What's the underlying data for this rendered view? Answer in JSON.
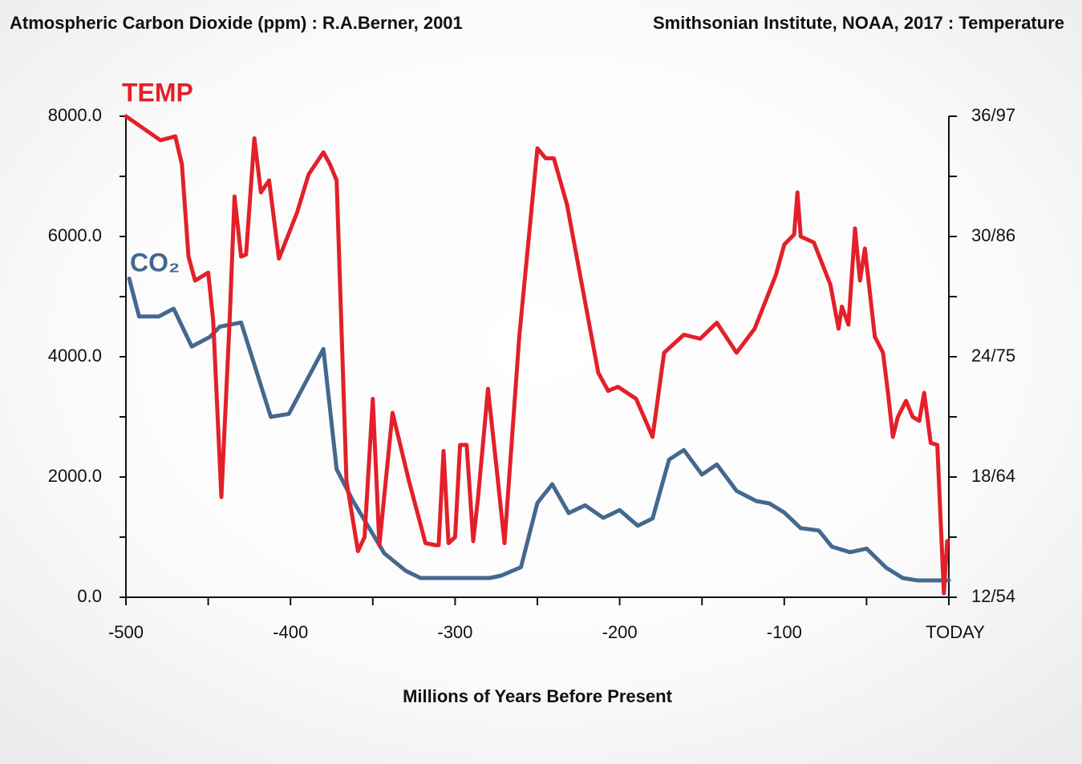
{
  "chart_data": {
    "type": "line",
    "title_left": "Atmospheric Carbon Dioxide (ppm) : R.A.Berner, 2001",
    "title_right": "Smithsonian Institute, NOAA, 2017 : Temperature",
    "x_label": "Millions of Years Before Present",
    "xlim": [
      -500,
      0
    ],
    "xticks": [
      -500,
      -400,
      -300,
      -200,
      -100,
      {
        "value": 0,
        "label": "TODAY"
      }
    ],
    "xminorticks": [
      -450,
      -350,
      -250,
      -150,
      -50
    ],
    "ylim": [
      0,
      8000
    ],
    "yticks": [
      {
        "value": 0,
        "label": "0.0"
      },
      {
        "value": 2000,
        "label": "2000.0"
      },
      {
        "value": 4000,
        "label": "4000.0"
      },
      {
        "value": 6000,
        "label": "6000.0"
      },
      {
        "value": 8000,
        "label": "8000.0"
      }
    ],
    "yminorticks": [
      1000,
      3000,
      5000,
      7000
    ],
    "y2lim": [
      12,
      36
    ],
    "y2ticks": [
      {
        "value": 12,
        "label": "12/54"
      },
      {
        "value": 18,
        "label": "18/64"
      },
      {
        "value": 24,
        "label": "24/75"
      },
      {
        "value": 30,
        "label": "30/86"
      },
      {
        "value": 36,
        "label": "36/97"
      }
    ],
    "y2minorticks": [
      15,
      21,
      27,
      33
    ],
    "series": [
      {
        "name": "TEMP",
        "color": "#e3202a",
        "axis": "y2",
        "x": [
          -500,
          -479,
          -470,
          -466,
          -462,
          -458,
          -450,
          -447,
          -442,
          -437,
          -434,
          -430,
          -427,
          -422,
          -418,
          -413,
          -407,
          -396,
          -389,
          -380,
          -376,
          -372,
          -366,
          -359,
          -355,
          -350,
          -346,
          -338,
          -328,
          -318,
          -312,
          -310,
          -307,
          -304,
          -300,
          -297,
          -293,
          -289,
          -286,
          -280,
          -275,
          -270,
          -261,
          -250,
          -245,
          -240,
          -232,
          -213,
          -207,
          -201,
          -190,
          -180,
          -173,
          -161,
          -151,
          -141,
          -129,
          -118,
          -105,
          -100,
          -94,
          -92,
          -90,
          -82,
          -72,
          -67,
          -65,
          -61,
          -57,
          -54,
          -51,
          -45,
          -40,
          -37,
          -34,
          -31,
          -26,
          -22,
          -18,
          -15,
          -11,
          -7,
          -3,
          -1
        ],
        "values": [
          36,
          34.8,
          35,
          33.6,
          29,
          27.8,
          28.2,
          25.8,
          17,
          25.8,
          32,
          29,
          29.1,
          34.9,
          32.2,
          32.8,
          28.9,
          31.2,
          33.1,
          34.2,
          33.6,
          32.8,
          17.8,
          14.3,
          15,
          21.9,
          14.6,
          21.2,
          17.8,
          14.7,
          14.6,
          14.6,
          19.3,
          14.7,
          15,
          19.6,
          19.6,
          14.8,
          17,
          22.4,
          18.6,
          14.7,
          25,
          34.4,
          33.9,
          33.9,
          31.6,
          23.2,
          22.3,
          22.5,
          21.9,
          20,
          24.2,
          25.1,
          24.9,
          25.7,
          24.2,
          25.4,
          28.1,
          29.6,
          30.1,
          32.2,
          30,
          29.7,
          27.6,
          25.4,
          26.5,
          25.6,
          30.4,
          27.8,
          29.4,
          25,
          24.2,
          22.2,
          20,
          21,
          21.8,
          21,
          20.8,
          22.2,
          19.7,
          19.6,
          12.2,
          14.8
        ]
      },
      {
        "name": "CO₂",
        "color": "#44688f",
        "axis": "y",
        "x": [
          -498,
          -492,
          -480,
          -471,
          -460,
          -449,
          -443,
          -430,
          -412,
          -401,
          -380,
          -372,
          -362,
          -343,
          -330,
          -321,
          -279,
          -272,
          -260,
          -250,
          -241,
          -231,
          -221,
          -210,
          -200,
          -189,
          -180,
          -170,
          -161,
          -150,
          -141,
          -129,
          -117,
          -109,
          -100,
          -90,
          -79,
          -71,
          -60,
          -50,
          -38,
          -28,
          -19,
          0
        ],
        "values": [
          5300,
          4670,
          4670,
          4800,
          4170,
          4330,
          4500,
          4570,
          3000,
          3050,
          4130,
          2130,
          1600,
          730,
          440,
          320,
          320,
          360,
          500,
          1570,
          1880,
          1400,
          1530,
          1320,
          1450,
          1190,
          1310,
          2290,
          2450,
          2040,
          2210,
          1770,
          1600,
          1560,
          1410,
          1150,
          1110,
          840,
          750,
          810,
          490,
          320,
          280,
          280
        ]
      }
    ]
  }
}
